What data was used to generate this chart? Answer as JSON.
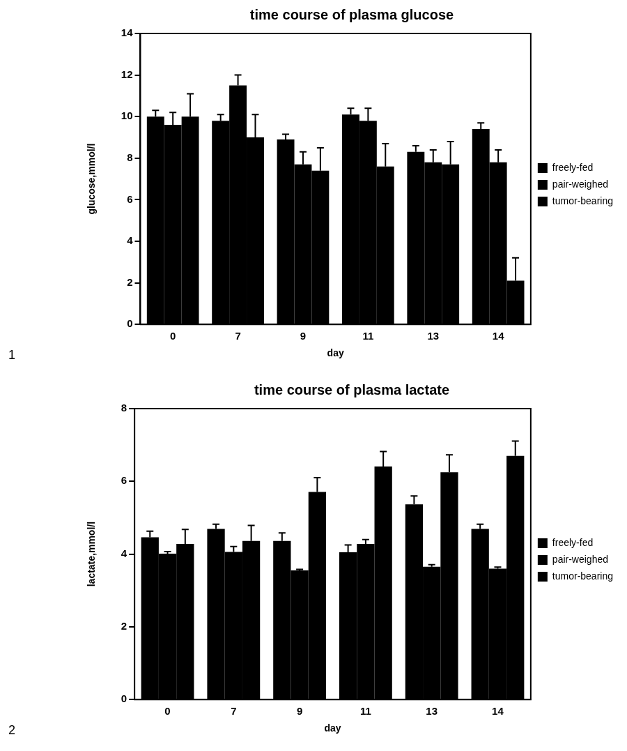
{
  "chart_data": [
    {
      "type": "bar",
      "title": "time course of plasma glucose",
      "xlabel": "day",
      "ylabel": "glucose,mmol/l",
      "categories": [
        "0",
        "7",
        "9",
        "11",
        "13",
        "14"
      ],
      "series": [
        {
          "name": "freely-fed",
          "color": "#000000",
          "values": [
            10.0,
            9.8,
            8.9,
            10.1,
            8.3,
            9.4
          ],
          "errors": [
            [
              10.0,
              10.3
            ],
            [
              9.8,
              10.1
            ],
            [
              8.9,
              9.15
            ],
            [
              10.1,
              10.4
            ],
            [
              8.3,
              8.6
            ],
            [
              9.4,
              9.7
            ]
          ]
        },
        {
          "name": "pair-weighed",
          "color": "#000000",
          "values": [
            9.6,
            11.5,
            7.7,
            9.8,
            7.8,
            7.8
          ],
          "errors": [
            [
              9.6,
              10.2
            ],
            [
              11.5,
              12.0
            ],
            [
              7.7,
              8.3
            ],
            [
              9.8,
              10.4
            ],
            [
              7.8,
              8.4
            ],
            [
              7.8,
              8.4
            ]
          ]
        },
        {
          "name": "tumor-bearing",
          "color": "#000000",
          "values": [
            10.0,
            9.0,
            7.4,
            7.6,
            7.7,
            2.1
          ],
          "errors": [
            [
              10.0,
              11.1
            ],
            [
              9.0,
              10.1
            ],
            [
              7.4,
              8.5
            ],
            [
              7.6,
              8.7
            ],
            [
              7.7,
              8.8
            ],
            [
              2.1,
              3.2
            ]
          ]
        }
      ],
      "ylim": [
        0,
        14
      ],
      "yticks": [
        0,
        2,
        4,
        6,
        8,
        10,
        12,
        14
      ],
      "grid": false,
      "legend": "right",
      "annotations": [
        "1"
      ]
    },
    {
      "type": "bar",
      "title": "time course of plasma lactate",
      "xlabel": "day",
      "ylabel": "lactate,mmol/l",
      "categories": [
        "0",
        "7",
        "9",
        "11",
        "13",
        "14"
      ],
      "series": [
        {
          "name": "freely-fed",
          "color": "#000000",
          "values": [
            4.46,
            4.69,
            4.36,
            4.05,
            5.37,
            4.69
          ],
          "errors": [
            [
              4.46,
              4.63
            ],
            [
              4.69,
              4.82
            ],
            [
              4.36,
              4.58
            ],
            [
              4.05,
              4.25
            ],
            [
              5.37,
              5.6
            ],
            [
              4.69,
              4.82
            ]
          ]
        },
        {
          "name": "pair-weighed",
          "color": "#000000",
          "values": [
            4.01,
            4.06,
            3.55,
            4.28,
            3.65,
            3.6
          ],
          "errors": [
            [
              4.01,
              4.07
            ],
            [
              4.06,
              4.21
            ],
            [
              3.55,
              3.58
            ],
            [
              4.28,
              4.4
            ],
            [
              3.65,
              3.71
            ],
            [
              3.6,
              3.64
            ]
          ]
        },
        {
          "name": "tumor-bearing",
          "color": "#000000",
          "values": [
            4.28,
            4.36,
            5.71,
            6.41,
            6.25,
            6.7
          ],
          "errors": [
            [
              4.28,
              4.68
            ],
            [
              4.36,
              4.79
            ],
            [
              5.71,
              6.1
            ],
            [
              6.41,
              6.82
            ],
            [
              6.25,
              6.73
            ],
            [
              6.7,
              7.11
            ]
          ]
        }
      ],
      "ylim": [
        0,
        8
      ],
      "yticks": [
        0,
        2,
        4,
        6,
        8
      ],
      "grid": false,
      "legend": "right",
      "annotations": [
        "2"
      ]
    }
  ]
}
